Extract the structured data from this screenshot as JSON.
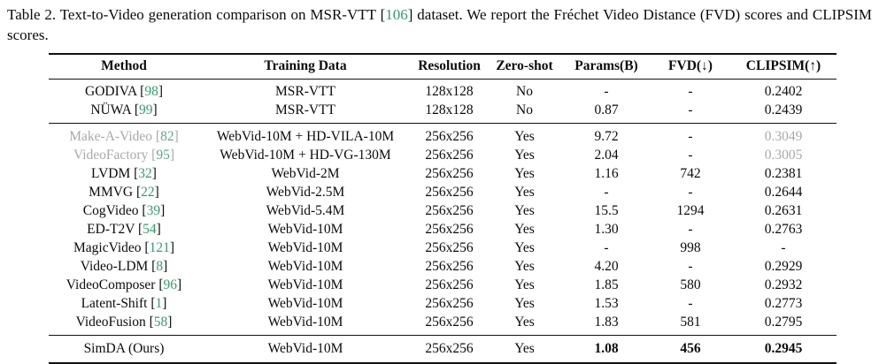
{
  "caption": {
    "prefix": "Table 2.  Text-to-Video generation comparison on MSR-VTT [",
    "cite": "106",
    "suffix": "] dataset.  We report the Fréchet Video Distance (FVD) scores and CLIPSIM scores."
  },
  "colors": {
    "citation_green": "#2f9e6b",
    "dimmed_gray": "#a9a9a9",
    "text_black": "#0b0b0b"
  },
  "table": {
    "columns": [
      "Method",
      "Training Data",
      "Resolution",
      "Zero-shot",
      "Params(B)",
      "FVD(↓)",
      "CLIPSIM(↑)"
    ],
    "rows": [
      {
        "method_prefix": "GODIVA [",
        "cite": "98",
        "method_suffix": "]",
        "training": "MSR-VTT",
        "resolution": "128x128",
        "zero_shot": "No",
        "params": "-",
        "fvd": "-",
        "clipsim": "0.2402",
        "dimmed": false,
        "group_start": false,
        "ours": false
      },
      {
        "method_prefix": "NÜWA [",
        "cite": "99",
        "method_suffix": "]",
        "training": "MSR-VTT",
        "resolution": "128x128",
        "zero_shot": "No",
        "params": "0.87",
        "fvd": "-",
        "clipsim": "0.2439",
        "dimmed": false,
        "group_start": false,
        "ours": false
      },
      {
        "method_prefix": "Make-A-Video [",
        "cite": "82",
        "method_suffix": "]",
        "training": "WebVid-10M + HD-VILA-10M",
        "resolution": "256x256",
        "zero_shot": "Yes",
        "params": "9.72",
        "fvd": "-",
        "clipsim": "0.3049",
        "dimmed": true,
        "group_start": true,
        "ours": false
      },
      {
        "method_prefix": "VideoFactory [",
        "cite": "95",
        "method_suffix": "]",
        "training": "WebVid-10M + HD-VG-130M",
        "resolution": "256x256",
        "zero_shot": "Yes",
        "params": "2.04",
        "fvd": "-",
        "clipsim": "0.3005",
        "dimmed": true,
        "group_start": false,
        "ours": false
      },
      {
        "method_prefix": "LVDM [",
        "cite": "32",
        "method_suffix": "]",
        "training": "WebVid-2M",
        "resolution": "256x256",
        "zero_shot": "Yes",
        "params": "1.16",
        "fvd": "742",
        "clipsim": "0.2381",
        "dimmed": false,
        "group_start": false,
        "ours": false
      },
      {
        "method_prefix": "MMVG [",
        "cite": "22",
        "method_suffix": "]",
        "training": "WebVid-2.5M",
        "resolution": "256x256",
        "zero_shot": "Yes",
        "params": "-",
        "fvd": "-",
        "clipsim": "0.2644",
        "dimmed": false,
        "group_start": false,
        "ours": false
      },
      {
        "method_prefix": "CogVideo [",
        "cite": "39",
        "method_suffix": "]",
        "training": "WebVid-5.4M",
        "resolution": "256x256",
        "zero_shot": "Yes",
        "params": "15.5",
        "fvd": "1294",
        "clipsim": "0.2631",
        "dimmed": false,
        "group_start": false,
        "ours": false
      },
      {
        "method_prefix": "ED-T2V [",
        "cite": "54",
        "method_suffix": "]",
        "training": "WebVid-10M",
        "resolution": "256x256",
        "zero_shot": "Yes",
        "params": "1.30",
        "fvd": "-",
        "clipsim": "0.2763",
        "dimmed": false,
        "group_start": false,
        "ours": false
      },
      {
        "method_prefix": "MagicVideo [",
        "cite": "121",
        "method_suffix": "]",
        "training": "WebVid-10M",
        "resolution": "256x256",
        "zero_shot": "Yes",
        "params": "-",
        "fvd": "998",
        "clipsim": "-",
        "dimmed": false,
        "group_start": false,
        "ours": false
      },
      {
        "method_prefix": "Video-LDM [",
        "cite": "8",
        "method_suffix": "]",
        "training": "WebVid-10M",
        "resolution": "256x256",
        "zero_shot": "Yes",
        "params": "4.20",
        "fvd": "-",
        "clipsim": "0.2929",
        "dimmed": false,
        "group_start": false,
        "ours": false
      },
      {
        "method_prefix": "VideoComposer [",
        "cite": "96",
        "method_suffix": "]",
        "training": "WebVid-10M",
        "resolution": "256x256",
        "zero_shot": "Yes",
        "params": "1.85",
        "fvd": "580",
        "clipsim": "0.2932",
        "dimmed": false,
        "group_start": false,
        "ours": false
      },
      {
        "method_prefix": "Latent-Shift [",
        "cite": "1",
        "method_suffix": "]",
        "training": "WebVid-10M",
        "resolution": "256x256",
        "zero_shot": "Yes",
        "params": "1.53",
        "fvd": "-",
        "clipsim": "0.2773",
        "dimmed": false,
        "group_start": false,
        "ours": false
      },
      {
        "method_prefix": "VideoFusion [",
        "cite": "58",
        "method_suffix": "]",
        "training": "WebVid-10M",
        "resolution": "256x256",
        "zero_shot": "Yes",
        "params": "1.83",
        "fvd": "581",
        "clipsim": "0.2795",
        "dimmed": false,
        "group_start": false,
        "ours": false
      },
      {
        "method_prefix": "SimDA (Ours)",
        "cite": "",
        "method_suffix": "",
        "training": "WebVid-10M",
        "resolution": "256x256",
        "zero_shot": "Yes",
        "params": "1.08",
        "fvd": "456",
        "clipsim": "0.2945",
        "dimmed": false,
        "group_start": true,
        "ours": true
      }
    ]
  }
}
